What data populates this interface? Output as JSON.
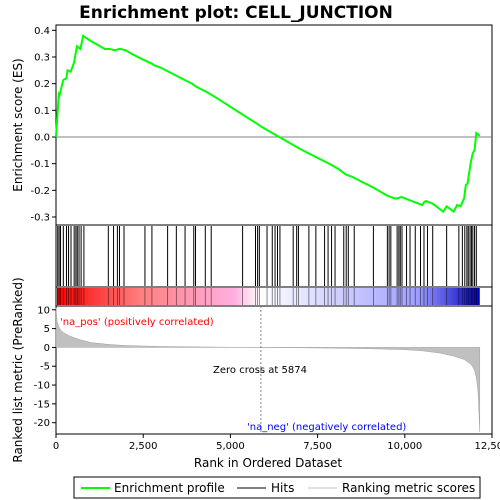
{
  "chart_data": {
    "type": "line",
    "title": "Enrichment plot: CELL_JUNCTION",
    "xlabel": "Rank in Ordered Dataset",
    "ylabel_top": "Enrichment score (ES)",
    "ylabel_bottom": "Ranked list metric (PreRanked)",
    "x_range": [
      0,
      12500
    ],
    "es_ylim": [
      -0.33,
      0.42
    ],
    "metric_ylim": [
      -23,
      11
    ],
    "x_ticks": [
      0,
      2500,
      5000,
      7500,
      10000,
      12500
    ],
    "x_tick_labels": [
      "0",
      "2,500",
      "5,000",
      "7,500",
      "10,000",
      "12,500"
    ],
    "es_ticks": [
      -0.3,
      -0.2,
      -0.1,
      0.0,
      0.1,
      0.2,
      0.3,
      0.4
    ],
    "es_tick_labels": [
      "-0.3",
      "-0.2",
      "-0.1",
      "0.0",
      "0.1",
      "0.2",
      "0.3",
      "0.4"
    ],
    "metric_ticks": [
      10,
      5,
      0,
      -5,
      -10,
      -15,
      -20
    ],
    "metric_tick_labels": [
      "10",
      "5",
      "0",
      "-5",
      "-10",
      "-15",
      "-20"
    ],
    "enrichment_profile": {
      "name": "Enrichment profile",
      "color": "#00ff00",
      "x": [
        0,
        40,
        80,
        100,
        200,
        220,
        300,
        330,
        420,
        520,
        560,
        600,
        650,
        700,
        780,
        820,
        1000,
        1200,
        1400,
        1550,
        1700,
        1800,
        1850,
        2000,
        2200,
        2500,
        2750,
        2800,
        3000,
        3300,
        3600,
        3900,
        4000,
        4300,
        4500,
        4800,
        5100,
        5400,
        5700,
        5874,
        6000,
        6200,
        6400,
        6600,
        6800,
        7000,
        7300,
        7600,
        7900,
        8100,
        8200,
        8300,
        8500,
        8800,
        9100,
        9300,
        9500,
        9600,
        9700,
        9800,
        9900,
        10000,
        10100,
        10200,
        10300,
        10400,
        10500,
        10550,
        10600,
        10700,
        10800,
        10900,
        11000,
        11100,
        11200,
        11300,
        11400,
        11500,
        11600,
        11700,
        11750,
        11800,
        11850,
        11900,
        11950,
        12000,
        12050,
        12100,
        12150
      ],
      "y": [
        0.0,
        0.08,
        0.16,
        0.155,
        0.21,
        0.215,
        0.22,
        0.25,
        0.245,
        0.28,
        0.31,
        0.34,
        0.335,
        0.33,
        0.38,
        0.375,
        0.36,
        0.345,
        0.33,
        0.33,
        0.325,
        0.33,
        0.33,
        0.325,
        0.31,
        0.29,
        0.275,
        0.27,
        0.26,
        0.24,
        0.22,
        0.2,
        0.19,
        0.17,
        0.155,
        0.13,
        0.105,
        0.08,
        0.055,
        0.04,
        0.03,
        0.015,
        0.0,
        -0.015,
        -0.03,
        -0.045,
        -0.065,
        -0.085,
        -0.105,
        -0.12,
        -0.13,
        -0.14,
        -0.15,
        -0.17,
        -0.19,
        -0.205,
        -0.22,
        -0.225,
        -0.23,
        -0.23,
        -0.225,
        -0.23,
        -0.235,
        -0.24,
        -0.245,
        -0.25,
        -0.255,
        -0.245,
        -0.24,
        -0.245,
        -0.25,
        -0.26,
        -0.27,
        -0.28,
        -0.26,
        -0.27,
        -0.28,
        -0.255,
        -0.26,
        -0.23,
        -0.18,
        -0.175,
        -0.13,
        -0.09,
        -0.06,
        -0.05,
        0.015,
        0.01,
        0.005
      ]
    },
    "hits": {
      "name": "Hits",
      "x": [
        50,
        90,
        130,
        210,
        300,
        360,
        430,
        520,
        570,
        610,
        660,
        720,
        800,
        1500,
        1650,
        1760,
        1820,
        1950,
        2550,
        2750,
        3200,
        3450,
        3700,
        3950,
        4000,
        4280,
        4450,
        5350,
        5720,
        5780,
        5830,
        6050,
        6200,
        6280,
        6350,
        6420,
        6800,
        6900,
        6950,
        7250,
        7450,
        7700,
        7800,
        7900,
        8000,
        8250,
        8320,
        8380,
        8550,
        9100,
        9500,
        9550,
        9600,
        9780,
        9830,
        9870,
        9920,
        10050,
        10150,
        10300,
        10450,
        10550,
        10650,
        10800,
        11200,
        11550,
        11650,
        11720,
        11780,
        11820,
        11870,
        11910,
        11950,
        12000,
        12050
      ],
      "color": "#000000"
    },
    "ranking_metric": {
      "name": "Ranking metric scores",
      "color": "#c0c0c0",
      "x": [
        0,
        30,
        100,
        200,
        400,
        700,
        1000,
        1500,
        2000,
        3000,
        4000,
        5000,
        5874,
        7000,
        8000,
        9000,
        10000,
        10500,
        11000,
        11400,
        11700,
        11900,
        12000,
        12050,
        12100,
        12130,
        12150
      ],
      "y": [
        10.5,
        7.0,
        5.0,
        4.0,
        3.0,
        2.0,
        1.3,
        0.8,
        0.5,
        0.25,
        0.15,
        0.05,
        0.0,
        -0.1,
        -0.2,
        -0.35,
        -0.6,
        -0.9,
        -1.5,
        -2.3,
        -3.2,
        -4.5,
        -6.0,
        -8.0,
        -12.0,
        -18.0,
        -22.5
      ]
    },
    "zero_cross_label": "Zero cross at 5874",
    "zero_cross_x": 5874,
    "pos_label": "'na_pos' (positively correlated)",
    "neg_label": "'na_neg' (negatively correlated)",
    "legend": [
      "Enrichment profile",
      "Hits",
      "Ranking metric scores"
    ],
    "colors": {
      "profile": "#00ff00",
      "pos_text": "#ff0000",
      "neg_text": "#0000ff",
      "metric_fill": "#c0c0c0",
      "zero_cross_line": "#808080"
    }
  }
}
